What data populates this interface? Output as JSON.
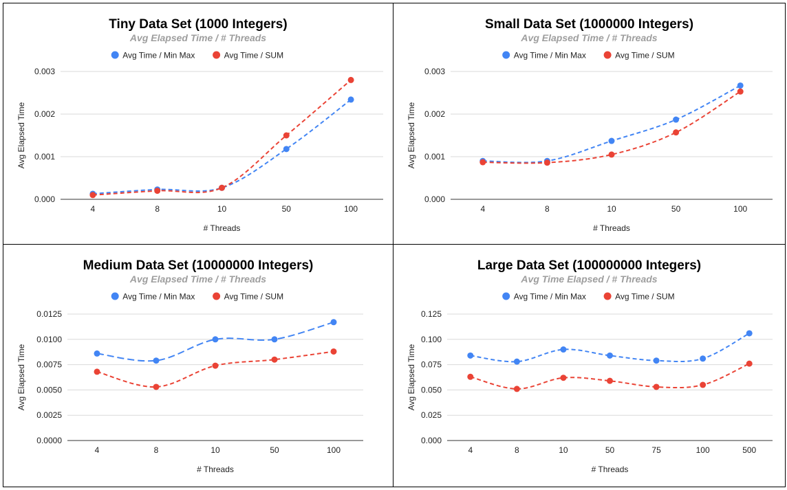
{
  "chart_data": [
    {
      "type": "line",
      "title": "Tiny Data Set (1000 Integers)",
      "subtitle": "Avg Elapsed Time / # Threads",
      "xlabel": "# Threads",
      "ylabel": "Avg Elapsed Time",
      "categories": [
        "4",
        "8",
        "10",
        "50",
        "100"
      ],
      "yticks": [
        "0.000",
        "0.001",
        "0.002",
        "0.003"
      ],
      "ylim": [
        0,
        0.003
      ],
      "legend_position": "top",
      "grid": true,
      "series": [
        {
          "name": "Avg Time / Min Max",
          "color": "#4285f4",
          "values": [
            0.00013,
            0.00023,
            0.00027,
            0.00118,
            0.00234
          ]
        },
        {
          "name": "Avg Time / SUM",
          "color": "#ea4335",
          "values": [
            0.0001,
            0.0002,
            0.00027,
            0.0015,
            0.0028
          ]
        }
      ]
    },
    {
      "type": "line",
      "title": "Small Data Set (1000000 Integers)",
      "subtitle": "Avg Elapsed Time / # Threads",
      "xlabel": "# Threads",
      "ylabel": "Avg Elapsed Time",
      "categories": [
        "4",
        "8",
        "10",
        "50",
        "100"
      ],
      "yticks": [
        "0.000",
        "0.001",
        "0.002",
        "0.003"
      ],
      "ylim": [
        0,
        0.003
      ],
      "legend_position": "top",
      "grid": true,
      "series": [
        {
          "name": "Avg Time / Min Max",
          "color": "#4285f4",
          "values": [
            0.0009,
            0.0009,
            0.00137,
            0.00187,
            0.00267
          ]
        },
        {
          "name": "Avg Time / SUM",
          "color": "#ea4335",
          "values": [
            0.00087,
            0.00086,
            0.00105,
            0.00157,
            0.00253
          ]
        }
      ]
    },
    {
      "type": "line",
      "title": "Medium Data Set (10000000 Integers)",
      "subtitle": "Avg Elapsed Time / # Threads",
      "xlabel": "# Threads",
      "ylabel": "Avg Elapsed Time",
      "categories": [
        "4",
        "8",
        "10",
        "50",
        "100"
      ],
      "yticks": [
        "0.0000",
        "0.0025",
        "0.0050",
        "0.0075",
        "0.0100",
        "0.0125"
      ],
      "ylim": [
        0,
        0.0125
      ],
      "legend_position": "top",
      "grid": true,
      "series": [
        {
          "name": "Avg Time / Min Max",
          "color": "#4285f4",
          "values": [
            0.0086,
            0.0079,
            0.01,
            0.01,
            0.0117
          ]
        },
        {
          "name": "Avg Time / SUM",
          "color": "#ea4335",
          "values": [
            0.0068,
            0.0053,
            0.0074,
            0.008,
            0.0088
          ]
        }
      ]
    },
    {
      "type": "line",
      "title": "Large Data Set (100000000 Integers)",
      "subtitle": "Avg Time Elapsed / # Threads",
      "xlabel": "# Threads",
      "ylabel": "Avg Elapsed Time",
      "categories": [
        "4",
        "8",
        "10",
        "50",
        "75",
        "100",
        "500"
      ],
      "yticks": [
        "0.000",
        "0.025",
        "0.050",
        "0.075",
        "0.100",
        "0.125"
      ],
      "ylim": [
        0,
        0.125
      ],
      "legend_position": "top",
      "grid": true,
      "series": [
        {
          "name": "Avg Time / Min Max",
          "color": "#4285f4",
          "values": [
            0.084,
            0.078,
            0.09,
            0.084,
            0.079,
            0.081,
            0.106
          ]
        },
        {
          "name": "Avg Time / SUM",
          "color": "#ea4335",
          "values": [
            0.063,
            0.051,
            0.062,
            0.059,
            0.053,
            0.055,
            0.076
          ]
        }
      ]
    }
  ]
}
